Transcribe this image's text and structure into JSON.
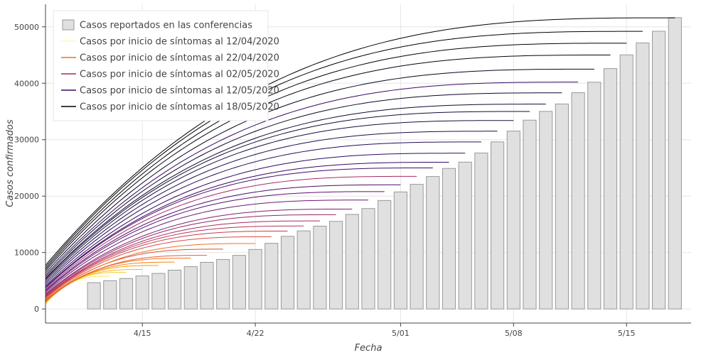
{
  "chart_data": {
    "type": "bar+line",
    "title": "",
    "xlabel": "Fecha",
    "ylabel": "Casos confirmados",
    "x_range": [
      "2020-04-09",
      "2020-05-19"
    ],
    "ylim": [
      -2500,
      54000
    ],
    "x_ticks": [
      {
        "date": "2020-04-15",
        "label": "4/15"
      },
      {
        "date": "2020-04-22",
        "label": "4/22"
      },
      {
        "date": "2020-05-01",
        "label": "5/01"
      },
      {
        "date": "2020-05-08",
        "label": "5/08"
      },
      {
        "date": "2020-05-15",
        "label": "5/15"
      }
    ],
    "y_ticks": [
      {
        "value": 0,
        "label": "0"
      },
      {
        "value": 10000,
        "label": "10000"
      },
      {
        "value": 20000,
        "label": "20000"
      },
      {
        "value": 30000,
        "label": "30000"
      },
      {
        "value": 40000,
        "label": "40000"
      },
      {
        "value": 50000,
        "label": "50000"
      }
    ],
    "grid": true,
    "legend_position": "top-left",
    "legend": [
      {
        "label": "Casos reportados en las conferencias",
        "kind": "bar",
        "color": "#e0e0e0"
      },
      {
        "label": "Casos por inicio de síntomas al 12/04/2020",
        "kind": "line",
        "color": "#fcffa4"
      },
      {
        "label": "Casos por inicio de síntomas al 22/04/2020",
        "kind": "line",
        "color": "#f1711f"
      },
      {
        "label": "Casos por inicio de síntomas al 02/05/2020",
        "kind": "line",
        "color": "#a52c60"
      },
      {
        "label": "Casos por inicio de síntomas al 12/05/2020",
        "kind": "line",
        "color": "#3a0963"
      },
      {
        "label": "Casos por inicio de síntomas al 18/05/2020",
        "kind": "line",
        "color": "#000004"
      }
    ],
    "bars": {
      "name": "Casos reportados en las conferencias",
      "color": "#e0e0e0",
      "stroke": "#999999",
      "dates": [
        "2020-04-12",
        "2020-04-13",
        "2020-04-14",
        "2020-04-15",
        "2020-04-16",
        "2020-04-17",
        "2020-04-18",
        "2020-04-19",
        "2020-04-20",
        "2020-04-21",
        "2020-04-22",
        "2020-04-23",
        "2020-04-24",
        "2020-04-25",
        "2020-04-26",
        "2020-04-27",
        "2020-04-28",
        "2020-04-29",
        "2020-04-30",
        "2020-05-01",
        "2020-05-02",
        "2020-05-03",
        "2020-05-04",
        "2020-05-05",
        "2020-05-06",
        "2020-05-07",
        "2020-05-08",
        "2020-05-09",
        "2020-05-10",
        "2020-05-11",
        "2020-05-12",
        "2020-05-13",
        "2020-05-14",
        "2020-05-15",
        "2020-05-16",
        "2020-05-17",
        "2020-05-18"
      ],
      "values": [
        4661,
        5014,
        5399,
        5847,
        6297,
        6875,
        7497,
        8261,
        8772,
        9501,
        10544,
        11633,
        12872,
        13842,
        14677,
        15529,
        16752,
        17799,
        19224,
        20739,
        22088,
        23471,
        24905,
        26025,
        27634,
        29616,
        31522,
        33460,
        35022,
        36327,
        38324,
        40186,
        42595,
        45032,
        47144,
        49219,
        51633
      ]
    },
    "series": [
      {
        "name": "Casos por inicio de síntomas al 12/04/2020",
        "end": "2020-04-12",
        "final": 5200,
        "color": "#fcffa4"
      },
      {
        "name": "",
        "end": "2020-04-13",
        "final": 5800,
        "color": "#f8e85a"
      },
      {
        "name": "",
        "end": "2020-04-14",
        "final": 6500,
        "color": "#f8cd37"
      },
      {
        "name": "",
        "end": "2020-04-15",
        "final": 7000,
        "color": "#fbb61a"
      },
      {
        "name": "",
        "end": "2020-04-16",
        "final": 7700,
        "color": "#fb9d07"
      },
      {
        "name": "",
        "end": "2020-04-17",
        "final": 8300,
        "color": "#f6850f"
      },
      {
        "name": "",
        "end": "2020-04-18",
        "final": 9000,
        "color": "#f1711f"
      },
      {
        "name": "",
        "end": "2020-04-19",
        "final": 9500,
        "color": "#e65d2f"
      },
      {
        "name": "",
        "end": "2020-04-20",
        "final": 10600,
        "color": "#d94d3d"
      },
      {
        "name": "Casos por inicio de síntomas al 22/04/2020",
        "end": "2020-04-22",
        "final": 11600,
        "color": "#f1711f"
      },
      {
        "name": "",
        "end": "2020-04-23",
        "final": 12800,
        "color": "#d64b40"
      },
      {
        "name": "",
        "end": "2020-04-24",
        "final": 13800,
        "color": "#c73e4c"
      },
      {
        "name": "",
        "end": "2020-04-25",
        "final": 14700,
        "color": "#b73557"
      },
      {
        "name": "",
        "end": "2020-04-26",
        "final": 15600,
        "color": "#a52c60"
      },
      {
        "name": "",
        "end": "2020-04-27",
        "final": 16700,
        "color": "#932667"
      },
      {
        "name": "",
        "end": "2020-04-28",
        "final": 17700,
        "color": "#81206c"
      },
      {
        "name": "",
        "end": "2020-04-29",
        "final": 19300,
        "color": "#6f196e"
      },
      {
        "name": "",
        "end": "2020-04-30",
        "final": 20800,
        "color": "#5d126e"
      },
      {
        "name": "",
        "end": "2020-05-01",
        "final": 22000,
        "color": "#4a0c6b"
      },
      {
        "name": "Casos por inicio de síntomas al 02/05/2020",
        "end": "2020-05-02",
        "final": 23500,
        "color": "#a52c60"
      },
      {
        "name": "",
        "end": "2020-05-03",
        "final": 25000,
        "color": "#420a68"
      },
      {
        "name": "",
        "end": "2020-05-04",
        "final": 26000,
        "color": "#3a0963"
      },
      {
        "name": "",
        "end": "2020-05-05",
        "final": 27600,
        "color": "#320a5e"
      },
      {
        "name": "",
        "end": "2020-05-06",
        "final": 29600,
        "color": "#290b55"
      },
      {
        "name": "",
        "end": "2020-05-07",
        "final": 31500,
        "color": "#210c4a"
      },
      {
        "name": "",
        "end": "2020-05-08",
        "final": 33400,
        "color": "#1b0c41"
      },
      {
        "name": "",
        "end": "2020-05-09",
        "final": 35000,
        "color": "#160b39"
      },
      {
        "name": "",
        "end": "2020-05-10",
        "final": 36300,
        "color": "#100a2f"
      },
      {
        "name": "",
        "end": "2020-05-11",
        "final": 38300,
        "color": "#0c0826"
      },
      {
        "name": "Casos por inicio de síntomas al 12/05/2020",
        "end": "2020-05-12",
        "final": 40200,
        "color": "#3a0963"
      },
      {
        "name": "",
        "end": "2020-05-13",
        "final": 42500,
        "color": "#07051b"
      },
      {
        "name": "",
        "end": "2020-05-14",
        "final": 45000,
        "color": "#040311"
      },
      {
        "name": "",
        "end": "2020-05-15",
        "final": 47100,
        "color": "#02020a"
      },
      {
        "name": "",
        "end": "2020-05-16",
        "final": 49200,
        "color": "#010106"
      },
      {
        "name": "Casos por inicio de síntomas al 18/05/2020",
        "end": "2020-05-18",
        "final": 51600,
        "color": "#000004"
      }
    ]
  }
}
